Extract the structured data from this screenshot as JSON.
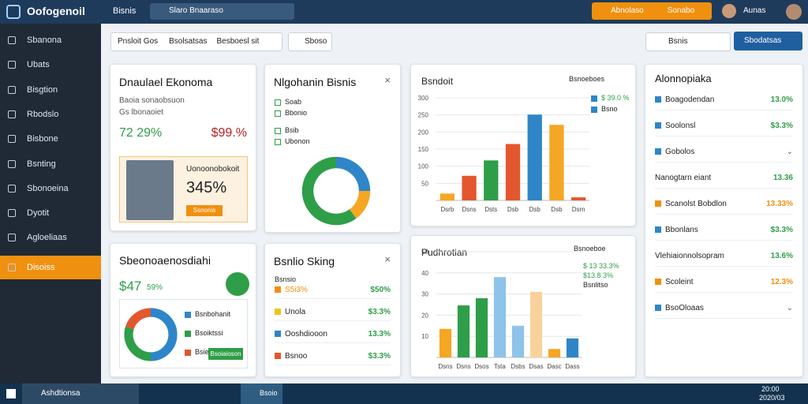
{
  "topbar": {
    "logo": "Oofogenoil",
    "app": "Bisnis",
    "search": "Slaro Bnaaraso",
    "button_left": "Abnolaso",
    "button_right": "Sonabo",
    "user": "Aunas"
  },
  "sidebar": [
    "Sbanona",
    "Ubats",
    "Bisgtion",
    "Rbodslo",
    "Bisbone",
    "Bsnting",
    "Sbonoeina",
    "Dyotit",
    "Agloeliaas",
    "Disoiss"
  ],
  "toolbar": {
    "filters": [
      "Pnsloit Gos",
      "Bsolsatsas",
      "Besboesl sit"
    ],
    "action": "Sboso",
    "search": "Bsnis",
    "button": "Sbodatsas"
  },
  "card1": {
    "title": "Dnaulael Ekonoma",
    "subtitle": "Baoia sonaobsuon",
    "meta": "Gs lbonaoiet",
    "stat_left": "72 29%",
    "stat_right": "$99.%",
    "profile_title": "Uonoonobokoit",
    "profile_value": "345%",
    "profile_button": "Ssnonis"
  },
  "card2": {
    "title": "Nlgohanin Bisnis",
    "items": [
      "Soab",
      "Bbonio",
      "Bsib",
      "Ubonon"
    ],
    "donut": {
      "values": [
        25,
        15,
        60
      ],
      "colors": [
        "#2e86c8",
        "#f5a623",
        "#2e9e48"
      ]
    }
  },
  "card3": {
    "title": "Bsndoit",
    "select": "Bsnoeboes",
    "legend": [
      "$ 39.0 %",
      "Bsno"
    ],
    "chart": {
      "type": "bar",
      "categories": [
        "Dsrb",
        "Dsns",
        "Dsts",
        "Dsb",
        "Dsb",
        "Dsb",
        "Dsrn"
      ],
      "values": [
        20,
        72,
        117,
        165,
        251,
        221,
        9
      ],
      "colors": [
        "#f5a623",
        "#e4572e",
        "#2e9e48",
        "#e4572e",
        "#2e86c8",
        "#f5a623",
        "#e4572e"
      ],
      "ylim": [
        0,
        300
      ],
      "yticks": [
        50,
        100,
        150,
        200,
        250,
        300
      ],
      "grid": true
    }
  },
  "card4": {
    "title": "Sbeonoaenosdiahi",
    "stat": "$47",
    "stat_sub": "59%",
    "legend": [
      "Bsnbohanit",
      "Bsoiktssi",
      "Bsie"
    ],
    "button": "Bsoiaioson",
    "donut": {
      "values": [
        50,
        30,
        20
      ],
      "colors": [
        "#2e86c8",
        "#2e9e48",
        "#e4572e"
      ]
    }
  },
  "card5": {
    "title": "Bsnlio Sking",
    "header": "Bsnsio",
    "rows": [
      [
        "S5i3%",
        "$50%"
      ],
      [
        "Unola",
        "$3.3%"
      ],
      [
        "Ooshdiooon",
        "13.3%"
      ],
      [
        "Bsnoo",
        "$3.3%"
      ]
    ]
  },
  "card6": {
    "title": "Pudhrotian",
    "select": "Bsnoeboe",
    "legend": [
      "$ 13 33.3%",
      "$13.8 3%",
      "Bsnlitso"
    ],
    "chart": {
      "type": "bar",
      "categories": [
        "Dsns",
        "Dsns",
        "Dsos",
        "Tsta",
        "Dsbs",
        "Dsas",
        "Dasc",
        "Dass"
      ],
      "values": [
        13.5,
        24.6,
        28,
        38,
        15,
        31,
        4,
        9
      ],
      "colors": [
        "#f5a623",
        "#2e9e48",
        "#2e9e48",
        "#8ec3ea",
        "#8ec3ea",
        "#f9d29b",
        "#f5a623",
        "#2e86c8"
      ],
      "ylim": [
        0,
        50
      ],
      "yticks": [
        10,
        20,
        30,
        40,
        50
      ],
      "grid": true
    }
  },
  "panel": {
    "title": "Alonnopiaka",
    "rows": [
      [
        "Boagodendan",
        "13.0%"
      ],
      [
        "Soolonsl",
        "$3.3%"
      ],
      [
        "Gobolos",
        null
      ],
      [
        "Nanogtarn eiant",
        "13.36"
      ],
      [
        "Scanolst Bobdlon",
        "13.33%"
      ],
      [
        "Bbonlans",
        "$3.3%"
      ],
      [
        "Vlehiaionnolsopram",
        "13.6%"
      ],
      [
        "Scoleint",
        "12.3%"
      ],
      [
        "BsoOloaas",
        null
      ]
    ]
  },
  "taskbar": {
    "search": "Ashdtionsa",
    "app": "Bsoio",
    "time": "20:00",
    "date": "2020/03"
  }
}
